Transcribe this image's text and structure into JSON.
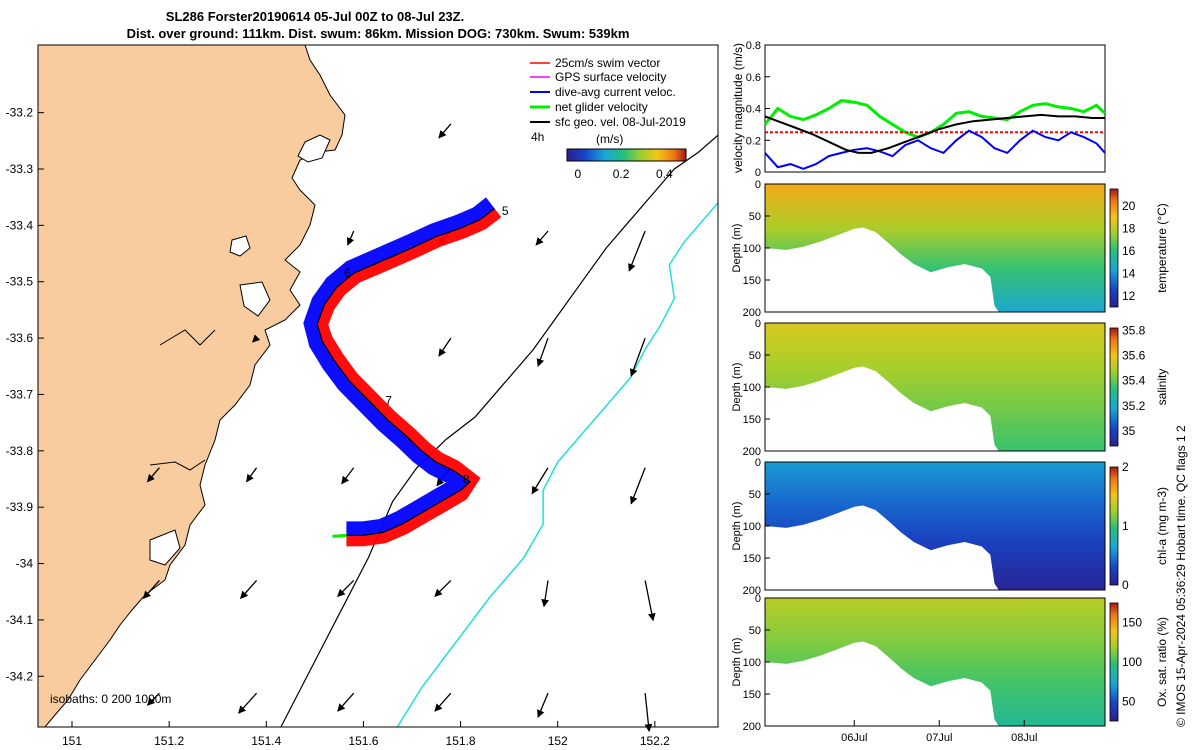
{
  "title_line1": "SL286 Forster20190614 05-Jul 00Z to 08-Jul 23Z.",
  "title_line2": "Dist. over ground: 111km. Dist. swum: 86km. Mission DOG: 730km. Swum: 539km",
  "credit": "© IMOS 15-Apr-2024 05:36:29 Hobart time. QC flags 1  2",
  "colors": {
    "land": "#F9CC9F",
    "swim": "#ff0000",
    "gps": "#ff00ff",
    "current": "#0000ff",
    "net": "#00ee00",
    "geo": "#000000",
    "isobath200": "#000000",
    "isobath1000": "#22dddd"
  },
  "chart_data": [
    {
      "id": "map",
      "type": "scatter",
      "xlim": [
        150.93,
        152.33
      ],
      "ylim": [
        -34.29,
        -33.08
      ],
      "x_ticks": [
        151,
        151.2,
        151.4,
        151.6,
        151.8,
        152,
        152.2
      ],
      "x_tick_labels": [
        "151",
        "151.2",
        "151.4",
        "151.6",
        "151.8",
        "152",
        "152.2"
      ],
      "y_ticks": [
        -33.2,
        -33.3,
        -33.4,
        -33.5,
        -33.6,
        -33.7,
        -33.8,
        -33.9,
        -34,
        -34.1,
        -34.2
      ],
      "y_tick_labels": [
        "-33.2",
        "-33.3",
        "-33.4",
        "-33.5",
        "-33.6",
        "-33.7",
        "-33.8",
        "-33.9",
        "-34",
        "-34.1",
        "-34.2"
      ],
      "legend": [
        {
          "label": "25cm/s swim vector",
          "color": "#ff0000"
        },
        {
          "label": "GPS surface velocity",
          "color": "#ff00ff"
        },
        {
          "label": "dive-avg current veloc.",
          "color": "#0000ff"
        },
        {
          "label": "net glider velocity",
          "color": "#00ee00"
        },
        {
          "label": "sfc geo. vel. 08-Jul-2019",
          "color": "#000000"
        }
      ],
      "legend_placement": "top-right",
      "scale_label": "4h",
      "colorbar": {
        "label": "(m/s)",
        "ticks": [
          0,
          0.2,
          0.4
        ],
        "tick_labels": [
          "0",
          "0.2",
          "0.4"
        ],
        "range": [
          -0.05,
          0.5
        ]
      },
      "isobath_label": "isobaths: 0   200  1000m",
      "track": {
        "lon": [
          151.87,
          151.84,
          151.8,
          151.75,
          151.7,
          151.66,
          151.62,
          151.58,
          151.545,
          151.52,
          151.505,
          151.515,
          151.54,
          151.57,
          151.61,
          151.65,
          151.69,
          151.72,
          151.75,
          151.785,
          151.82,
          151.8,
          151.76,
          151.72,
          151.68,
          151.64,
          151.6,
          151.565
        ],
        "lat": [
          -33.37,
          -33.39,
          -33.405,
          -33.42,
          -33.44,
          -33.455,
          -33.47,
          -33.485,
          -33.51,
          -33.54,
          -33.575,
          -33.605,
          -33.64,
          -33.675,
          -33.71,
          -33.745,
          -33.775,
          -33.8,
          -33.82,
          -33.835,
          -33.855,
          -33.87,
          -33.89,
          -33.91,
          -33.93,
          -33.945,
          -33.95,
          -33.95
        ]
      },
      "day_labels": [
        {
          "text": "5",
          "lon": 151.885,
          "lat": -33.382
        },
        {
          "text": "6",
          "lon": 151.56,
          "lat": -33.492
        },
        {
          "text": "7",
          "lon": 151.645,
          "lat": -33.718
        },
        {
          "text": "8",
          "lon": 151.805,
          "lat": -33.858
        }
      ],
      "geo_vectors": {
        "lon": [
          151.18,
          151.38,
          151.58,
          151.78,
          151.98,
          152.18
        ],
        "lat": [
          -33.22,
          -33.41,
          -33.6,
          -33.83,
          -34.03,
          -34.23
        ],
        "u": [
          [
            0,
            0,
            0,
            -0.06,
            0,
            0
          ],
          [
            0,
            0,
            -0.03,
            -0.06,
            -0.06,
            -0.08
          ],
          [
            0,
            -0.02,
            0,
            -0.06,
            -0.05,
            -0.07
          ],
          [
            -0.06,
            -0.05,
            -0.06,
            -0.07,
            -0.08,
            -0.07
          ],
          [
            -0.08,
            -0.08,
            -0.08,
            -0.08,
            -0.02,
            0.04
          ],
          [
            -0.06,
            -0.09,
            -0.08,
            -0.08,
            -0.05,
            0.02
          ]
        ],
        "v": [
          [
            0,
            0,
            0,
            -0.07,
            0,
            0
          ],
          [
            0,
            0,
            -0.07,
            -0.07,
            -0.07,
            -0.2
          ],
          [
            0,
            -0.02,
            0,
            -0.09,
            -0.14,
            -0.19
          ],
          [
            -0.07,
            -0.07,
            -0.08,
            -0.09,
            -0.13,
            -0.18
          ],
          [
            -0.09,
            -0.09,
            -0.08,
            -0.08,
            -0.13,
            -0.2
          ],
          [
            -0.06,
            -0.1,
            -0.09,
            -0.09,
            -0.12,
            -0.19
          ]
        ]
      },
      "isobath_200": {
        "lon": [
          151.43,
          151.49,
          151.55,
          151.61,
          151.66,
          151.71,
          151.77,
          151.83,
          151.89,
          151.95,
          152.0,
          152.05,
          152.1,
          152.15,
          152.2,
          152.24,
          152.29,
          152.33
        ],
        "lat": [
          -34.29,
          -34.19,
          -34.09,
          -33.99,
          -33.89,
          -33.83,
          -33.78,
          -33.74,
          -33.68,
          -33.62,
          -33.56,
          -33.5,
          -33.44,
          -33.39,
          -33.34,
          -33.3,
          -33.27,
          -33.24
        ]
      },
      "isobath_1000": {
        "lon": [
          151.67,
          151.72,
          151.79,
          151.86,
          151.93,
          151.97,
          151.97,
          152.0,
          152.05,
          152.1,
          152.15,
          152.18,
          152.21,
          152.24,
          152.23,
          152.26,
          152.3,
          152.33
        ],
        "lat": [
          -34.29,
          -34.22,
          -34.14,
          -34.06,
          -33.99,
          -33.93,
          -33.87,
          -33.82,
          -33.77,
          -33.72,
          -33.67,
          -33.62,
          -33.58,
          -33.53,
          -33.47,
          -33.43,
          -33.39,
          -33.36
        ]
      }
    },
    {
      "id": "velocity",
      "type": "line",
      "ylabel": "velocity magnitude (m/s)",
      "xlim": [
        4.95,
        8.95
      ],
      "ylim": [
        0,
        0.8
      ],
      "y_ticks": [
        0,
        0.2,
        0.4,
        0.6,
        0.8
      ],
      "y_tick_labels": [
        "0",
        "0.2",
        "0.4",
        "0.6",
        "0.8"
      ],
      "series": [
        {
          "color": "#00ee00",
          "x": [
            4.95,
            5.1,
            5.25,
            5.4,
            5.55,
            5.7,
            5.85,
            6.0,
            6.15,
            6.3,
            6.45,
            6.6,
            6.75,
            6.9,
            7.05,
            7.2,
            7.35,
            7.5,
            7.65,
            7.8,
            7.95,
            8.1,
            8.25,
            8.4,
            8.55,
            8.7,
            8.85,
            8.95
          ],
          "y": [
            0.3,
            0.4,
            0.35,
            0.33,
            0.36,
            0.4,
            0.45,
            0.44,
            0.42,
            0.35,
            0.3,
            0.25,
            0.22,
            0.25,
            0.3,
            0.37,
            0.38,
            0.35,
            0.34,
            0.33,
            0.38,
            0.42,
            0.43,
            0.41,
            0.4,
            0.38,
            0.42,
            0.37
          ]
        },
        {
          "color": "#ff0000",
          "x": [
            4.95,
            5.5,
            6.0,
            6.5,
            7.0,
            7.5,
            8.0,
            8.5,
            8.95
          ],
          "y": [
            0.25,
            0.25,
            0.25,
            0.25,
            0.25,
            0.25,
            0.25,
            0.25,
            0.25
          ]
        },
        {
          "color": "#0000ff",
          "x": [
            4.95,
            5.1,
            5.25,
            5.4,
            5.55,
            5.7,
            5.85,
            6.0,
            6.15,
            6.3,
            6.45,
            6.6,
            6.75,
            6.9,
            7.05,
            7.2,
            7.35,
            7.5,
            7.65,
            7.8,
            7.95,
            8.1,
            8.25,
            8.4,
            8.55,
            8.7,
            8.85,
            8.95
          ],
          "y": [
            0.12,
            0.03,
            0.05,
            0.02,
            0.05,
            0.1,
            0.12,
            0.14,
            0.15,
            0.13,
            0.1,
            0.17,
            0.2,
            0.15,
            0.12,
            0.2,
            0.26,
            0.22,
            0.15,
            0.12,
            0.2,
            0.26,
            0.22,
            0.2,
            0.25,
            0.22,
            0.18,
            0.12
          ]
        },
        {
          "color": "#000000",
          "x": [
            4.95,
            5.1,
            5.3,
            5.5,
            5.7,
            5.9,
            6.05,
            6.2,
            6.4,
            6.6,
            6.8,
            7.0,
            7.2,
            7.4,
            7.6,
            7.8,
            8.0,
            8.2,
            8.4,
            8.6,
            8.8,
            8.95
          ],
          "y": [
            0.35,
            0.32,
            0.28,
            0.24,
            0.19,
            0.14,
            0.12,
            0.12,
            0.15,
            0.19,
            0.23,
            0.27,
            0.3,
            0.32,
            0.33,
            0.34,
            0.35,
            0.36,
            0.35,
            0.35,
            0.34,
            0.34
          ]
        }
      ]
    },
    {
      "id": "temperature",
      "type": "heatmap",
      "ylabel": "Depth (m)",
      "clabel": "temperature (°C)",
      "clim": [
        11,
        21.5
      ],
      "colorbar_ticks": [
        12,
        14,
        16,
        18,
        20
      ],
      "colorbar_tick_labels": [
        "12",
        "14",
        "16",
        "18",
        "20"
      ],
      "depth_ticks": [
        0,
        50,
        100,
        150,
        200
      ],
      "depth_tick_labels": [
        "0",
        "50",
        "100",
        "150",
        "200"
      ],
      "surface_value": 19.5,
      "bottom_value": 14.5
    },
    {
      "id": "salinity",
      "type": "heatmap",
      "ylabel": "Depth (m)",
      "clabel": "salinity",
      "clim": [
        34.88,
        35.82
      ],
      "colorbar_ticks": [
        35,
        35.2,
        35.4,
        35.6,
        35.8
      ],
      "colorbar_tick_labels": [
        "35",
        "35.2",
        "35.4",
        "35.6",
        "35.8"
      ],
      "depth_ticks": [
        0,
        50,
        100,
        150,
        200
      ],
      "depth_tick_labels": [
        "0",
        "50",
        "100",
        "150",
        "200"
      ],
      "surface_value": 35.55,
      "bottom_value": 35.35
    },
    {
      "id": "chla",
      "type": "heatmap",
      "ylabel": "Depth (m)",
      "clabel": "chl-a (mg m-3)",
      "clim": [
        0,
        2
      ],
      "colorbar_ticks": [
        0,
        1,
        2
      ],
      "colorbar_tick_labels": [
        "0",
        "1",
        "2"
      ],
      "depth_ticks": [
        0,
        50,
        100,
        150,
        200
      ],
      "depth_tick_labels": [
        "0",
        "50",
        "100",
        "150",
        "200"
      ],
      "surface_value": 0.6,
      "bottom_value": 0.05
    },
    {
      "id": "oxygen",
      "type": "heatmap",
      "ylabel": "Depth (m)",
      "clabel": "Ox. sat. ratio (%)",
      "clim": [
        25,
        175
      ],
      "colorbar_ticks": [
        50,
        100,
        150
      ],
      "colorbar_tick_labels": [
        "50",
        "100",
        "150"
      ],
      "depth_ticks": [
        0,
        50,
        100,
        150,
        200
      ],
      "depth_tick_labels": [
        "0",
        "50",
        "100",
        "150",
        "200"
      ],
      "surface_value": 125,
      "bottom_value": 90
    },
    {
      "id": "time_axis",
      "type": "line",
      "xlim": [
        4.95,
        8.95
      ],
      "x_ticks": [
        6,
        7,
        8
      ],
      "x_tick_labels": [
        "06Jul",
        "07Jul",
        "08Jul"
      ],
      "profile_depth": {
        "x": [
          4.95,
          5.2,
          5.4,
          5.6,
          5.8,
          6.0,
          6.1,
          6.25,
          6.4,
          6.55,
          6.7,
          6.9,
          7.1,
          7.3,
          7.5,
          7.6,
          7.65,
          7.7,
          8.0,
          8.5,
          8.95
        ],
        "depth": [
          100,
          103,
          98,
          90,
          80,
          70,
          68,
          75,
          92,
          110,
          125,
          138,
          130,
          125,
          132,
          145,
          190,
          200,
          200,
          200,
          200
        ]
      }
    }
  ]
}
